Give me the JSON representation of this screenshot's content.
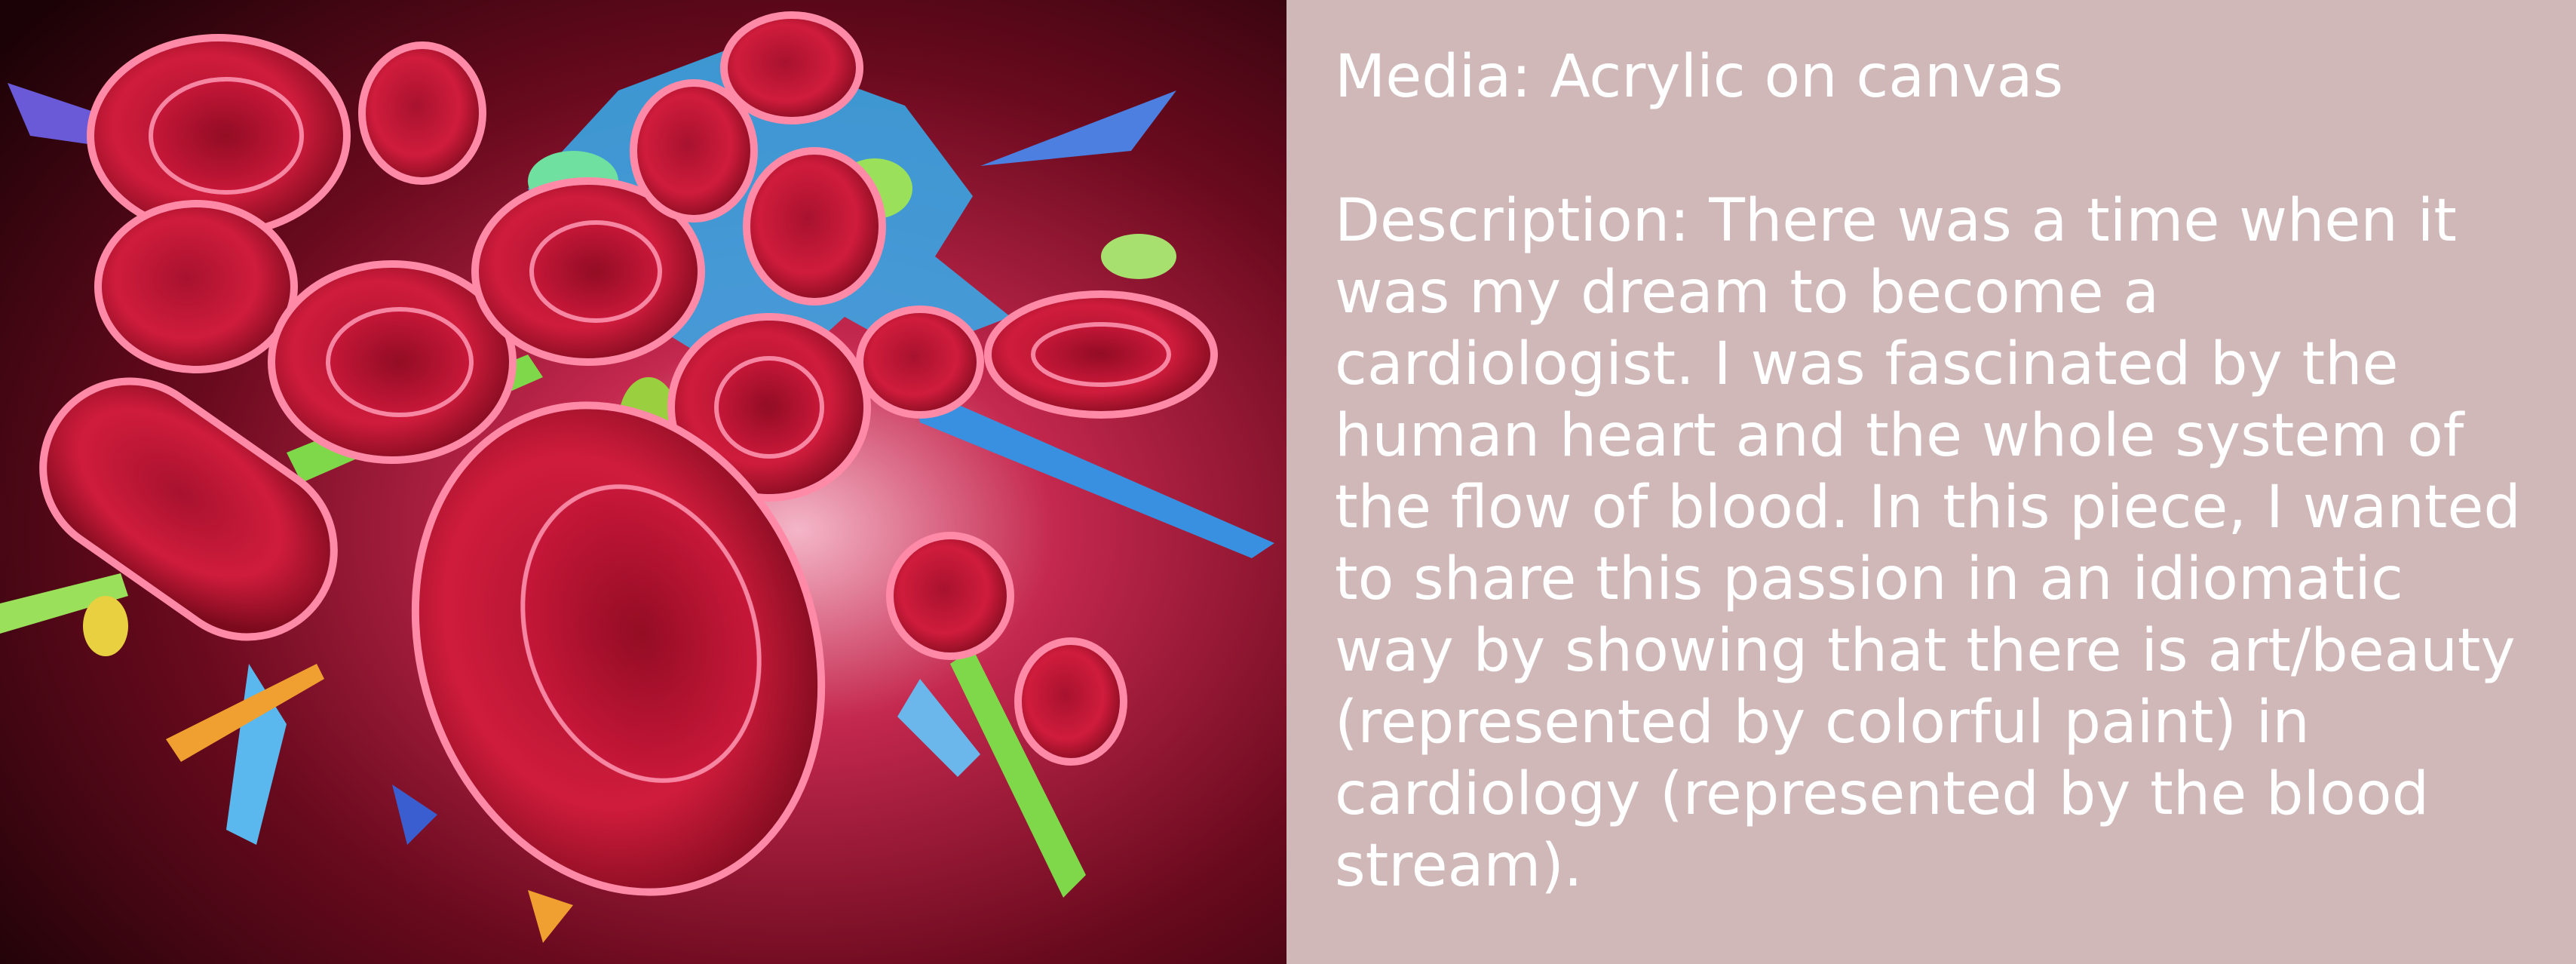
{
  "colors": {
    "panel_background": "#d0b8b8",
    "text": "#ffffff",
    "painting_dark": "#2a0008",
    "cell_red": "#c0102e",
    "splash_blue": "#3da8e8",
    "splash_green": "#6fd24a"
  },
  "artwork": {
    "subject": "red blood cells with colorful paint splashes"
  },
  "info": {
    "media": "Media: Acrylic on canvas",
    "description": "Description: There was a time when it was my dream to become a cardiologist. I was fascinated by the human heart and the whole system of the flow of blood. In this piece, I wanted to share this passion in an idiomatic way by showing that there is art/beauty (represented by colorful paint) in cardiology (represented by the blood stream)."
  }
}
